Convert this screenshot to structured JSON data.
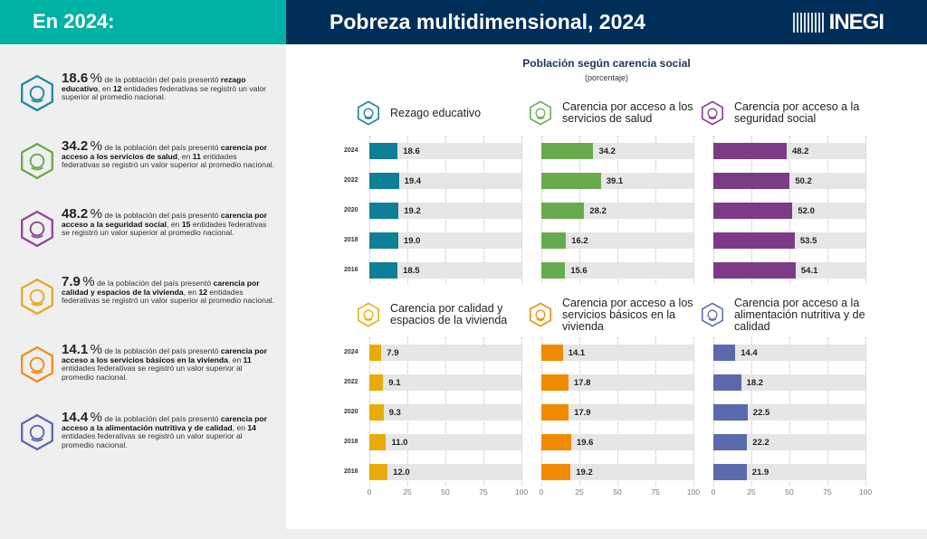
{
  "header": {
    "left_title": "En 2024:",
    "title": "Pobreza multidimensional, 2024",
    "logo_text": "INEGI"
  },
  "summary": [
    {
      "pct": "18.6",
      "unit": "%",
      "text_a": " de la población del país presentó ",
      "bold": "rezago educativo",
      "text_b": ", en ",
      "states": "12",
      "text_c": " entidades federativas se registró un valor superior al promedio nacional.",
      "icon": "pencil-icon",
      "color": "#1d8a9e"
    },
    {
      "pct": "34.2",
      "unit": "%",
      "text_a": " de la población del país presentó ",
      "bold": "carencia por acceso a los servicios de salud",
      "text_b": ", en ",
      "states": "11",
      "text_c": " entidades federativas se registró un valor superior al promedio nacional.",
      "icon": "stethoscope-icon",
      "color": "#6aaa4f"
    },
    {
      "pct": "48.2",
      "unit": "%",
      "text_a": " de la población del país presentó ",
      "bold": "carencia por acceso a la seguridad social",
      "text_b": ", en ",
      "states": "15",
      "text_c": " entidades federativas se registró un valor superior al promedio nacional.",
      "icon": "people-in-hands-icon",
      "color": "#8a4a93"
    },
    {
      "pct": "7.9",
      "unit": "%",
      "text_a": " de la población del país presentó ",
      "bold": "carencia por calidad y espacios de la vivienda",
      "text_b": ", en ",
      "states": "12",
      "text_c": " entidades federativas se registró un valor superior al promedio nacional.",
      "icon": "house-in-hands-icon",
      "color": "#e3ab1e"
    },
    {
      "pct": "14.1",
      "unit": "%",
      "text_a": " de la población del país presentó ",
      "bold": "carencia por acceso a los servicios básicos en la vivienda",
      "text_b": ", en ",
      "states": "11",
      "text_c": " entidades federativas se registró un valor superior al promedio nacional.",
      "icon": "faucet-icon",
      "color": "#ef8c1a"
    },
    {
      "pct": "14.4",
      "unit": "%",
      "text_a": " de la población del país presentó ",
      "bold": "carencia por acceso a la alimentación nutritiva y de calidad",
      "text_b": ", en ",
      "states": "14",
      "text_c": " entidades federativas se registró un valor superior al promedio nacional.",
      "icon": "plate-fork-icon",
      "color": "#5b6aad"
    }
  ],
  "chart_data": {
    "type": "bar",
    "title": "Población según carencia social",
    "subtitle": "(porcentaje)",
    "categories": [
      "2024",
      "2022",
      "2020",
      "2018",
      "2016"
    ],
    "xlim": [
      0,
      100
    ],
    "xticks": [
      "0",
      "25",
      "50",
      "75",
      "100"
    ],
    "grid": true,
    "panels": [
      {
        "title": "Rezago educativo",
        "color": "#0e7f94",
        "icon": "pencil-icon",
        "values": [
          18.6,
          19.4,
          19.2,
          19.0,
          18.5
        ],
        "labels": [
          "18.6",
          "19.4",
          "19.2",
          "19.0",
          "18.5"
        ]
      },
      {
        "title": "Carencia por acceso a los servicios de salud",
        "color": "#6aaa4f",
        "icon": "stethoscope-icon",
        "values": [
          34.2,
          39.1,
          28.2,
          16.2,
          15.6
        ],
        "labels": [
          "34.2",
          "39.1",
          "28.2",
          "16.2",
          "15.6"
        ]
      },
      {
        "title": "Carencia por acceso a la seguridad social",
        "color": "#7b3c85",
        "icon": "people-in-hands-icon",
        "values": [
          48.2,
          50.2,
          52.0,
          53.5,
          54.1
        ],
        "labels": [
          "48.2",
          "50.2",
          "52.0",
          "53.5",
          "54.1"
        ]
      },
      {
        "title": "Carencia por calidad y espacios de la vivienda",
        "color": "#e8ab0a",
        "icon": "house-in-hands-icon",
        "values": [
          7.9,
          9.1,
          9.3,
          11.0,
          12.0
        ],
        "labels": [
          "7.9",
          "9.1",
          "9.3",
          "11.0",
          "12.0"
        ]
      },
      {
        "title": "Carencia por acceso a los servicios básicos en la vivienda",
        "color": "#f08a00",
        "icon": "faucet-icon",
        "values": [
          14.1,
          17.8,
          17.9,
          19.6,
          19.2
        ],
        "labels": [
          "14.1",
          "17.8",
          "17.9",
          "19.6",
          "19.2"
        ]
      },
      {
        "title": "Carencia por acceso a la alimentación nutritiva y de calidad",
        "color": "#5b6aad",
        "icon": "plate-fork-icon",
        "values": [
          14.4,
          18.2,
          22.5,
          22.2,
          21.9
        ],
        "labels": [
          "14.4",
          "18.2",
          "22.5",
          "22.2",
          "21.9"
        ]
      }
    ]
  }
}
